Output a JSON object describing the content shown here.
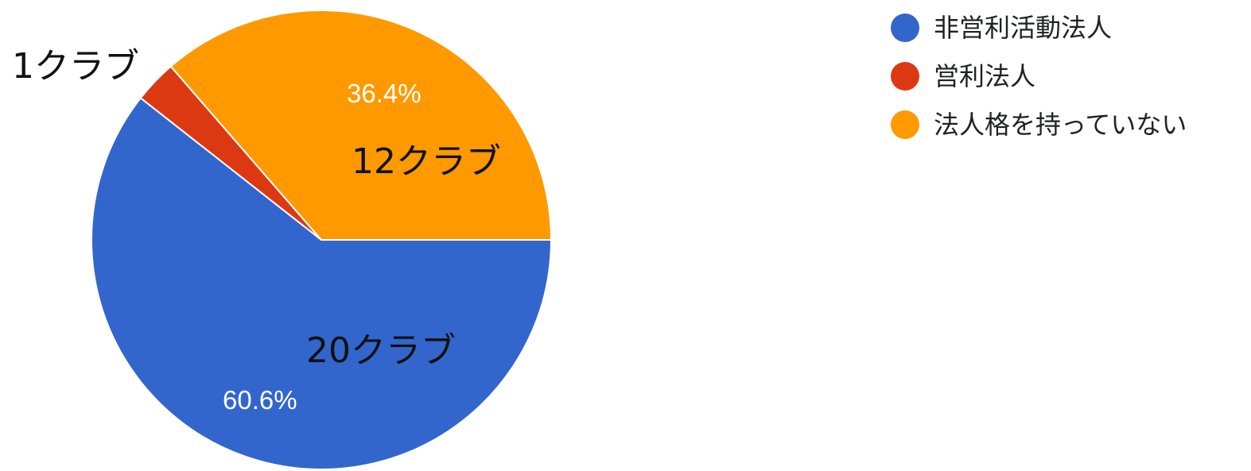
{
  "chart_data": {
    "type": "pie",
    "slices": [
      {
        "name": "非営利活動法人",
        "value": 20,
        "percent_label": "60.6%",
        "count_label": "20クラブ",
        "color": "#3366cc"
      },
      {
        "name": "営利法人",
        "value": 1,
        "percent_label": "",
        "count_label": "1クラブ",
        "color": "#dc3912"
      },
      {
        "name": "法人格を持っていない",
        "value": 12,
        "percent_label": "36.4%",
        "count_label": "12クラブ",
        "color": "#ff9900"
      }
    ],
    "legend": {
      "position": "top-right",
      "items": [
        "非営利活動法人",
        "営利法人",
        "法人格を持っていない"
      ]
    },
    "start": "3 o'clock",
    "direction": "clockwise"
  }
}
